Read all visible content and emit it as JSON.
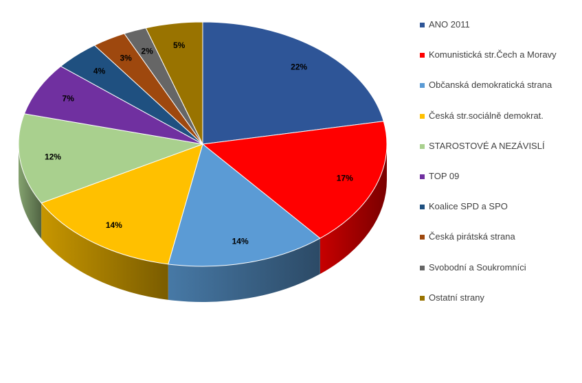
{
  "chart_data": {
    "type": "pie",
    "title": "",
    "categories": [
      "ANO 2011",
      "Komunistická str.Čech a Moravy",
      "Občanská demokratická strana",
      "Česká str.sociálně demokrat.",
      "STAROSTOVÉ A NEZÁVISLÍ",
      "TOP 09",
      "Koalice SPD a SPO",
      "Česká pirátská strana",
      "Svobodní a Soukromníci",
      "Ostatní strany"
    ],
    "values": [
      22,
      17,
      14,
      14,
      12,
      7,
      4,
      3,
      2,
      5
    ],
    "labels": [
      "22%",
      "17%",
      "14%",
      "14%",
      "12%",
      "7%",
      "4%",
      "3%",
      "2%",
      "5%"
    ],
    "colors": [
      "#2e5597",
      "#ff0000",
      "#5b9bd5",
      "#ffc000",
      "#a9d08e",
      "#7030a0",
      "#1f5080",
      "#9e480e",
      "#666666",
      "#997300"
    ],
    "legend_position": "right",
    "style": "3d"
  }
}
